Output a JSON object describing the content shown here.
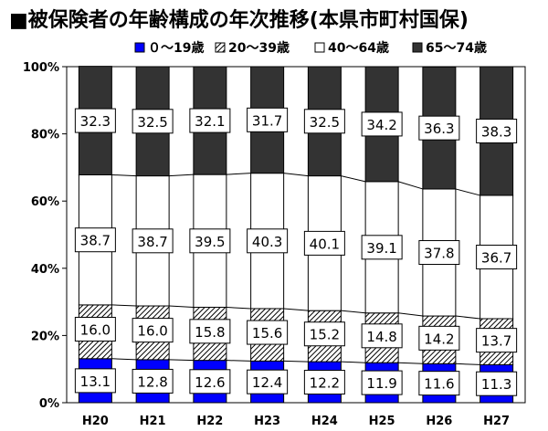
{
  "page_title": "■被保険者の年齢構成の年次推移(本県市町村国保)",
  "chart_data": {
    "type": "bar",
    "stacked": true,
    "percent": true,
    "title": "■被保険者の年齢構成の年次推移(本県市町村国保)",
    "categories": [
      "H20",
      "H21",
      "H22",
      "H23",
      "H24",
      "H25",
      "H26",
      "H27"
    ],
    "series": [
      {
        "name": "０～19歳",
        "color": "#0000ff",
        "pattern": "solid",
        "values": [
          13.1,
          12.8,
          12.6,
          12.4,
          12.2,
          11.9,
          11.6,
          11.3
        ]
      },
      {
        "name": "20～39歳",
        "color": "#000000",
        "pattern": "hatch",
        "values": [
          16.0,
          16.0,
          15.8,
          15.6,
          15.2,
          14.8,
          14.2,
          13.7
        ]
      },
      {
        "name": "40～64歳",
        "color": "#ffffff",
        "pattern": "empty",
        "values": [
          38.7,
          38.7,
          39.5,
          40.3,
          40.1,
          39.1,
          37.8,
          36.7
        ]
      },
      {
        "name": "65～74歳",
        "color": "#333333",
        "pattern": "solid",
        "values": [
          32.3,
          32.5,
          32.1,
          31.7,
          32.5,
          34.2,
          36.3,
          38.3
        ]
      }
    ],
    "value_labels": {
      "0": [
        "13.1",
        "12.8",
        "12.6",
        "12.4",
        "12.2",
        "11.9",
        "11.6",
        "11.3"
      ],
      "1": [
        "16.0",
        "16.0",
        "15.8",
        "15.6",
        "15.2",
        "14.8",
        "14.2",
        "13.7"
      ],
      "2": [
        "38.7",
        "38.7",
        "39.5",
        "40.3",
        "40.1",
        "39.1",
        "37.8",
        "36.7"
      ],
      "3": [
        "32.3",
        "32.5",
        "32.1",
        "31.7",
        "32.5",
        "34.2",
        "36.3",
        "38.3"
      ]
    },
    "ylim": [
      0,
      100
    ],
    "yticks": [
      "0%",
      "20%",
      "40%",
      "60%",
      "80%",
      "100%"
    ],
    "series_lines": true,
    "legend_position": "top"
  }
}
